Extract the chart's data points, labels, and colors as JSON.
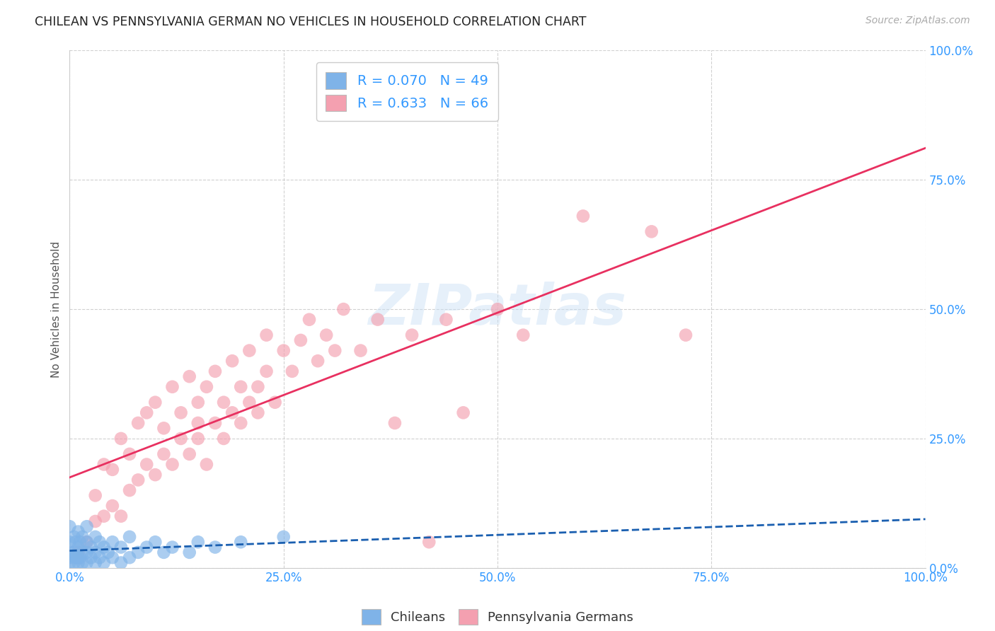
{
  "title": "CHILEAN VS PENNSYLVANIA GERMAN NO VEHICLES IN HOUSEHOLD CORRELATION CHART",
  "source": "Source: ZipAtlas.com",
  "ylabel": "No Vehicles in Household",
  "watermark": "ZIPatlas",
  "xlim": [
    0.0,
    1.0
  ],
  "ylim": [
    0.0,
    1.0
  ],
  "xtick_positions": [
    0.0,
    0.25,
    0.5,
    0.75,
    1.0
  ],
  "xtick_labels": [
    "0.0%",
    "25.0%",
    "50.0%",
    "75.0%",
    "100.0%"
  ],
  "ytick_positions": [
    0.0,
    0.25,
    0.5,
    0.75,
    1.0
  ],
  "ytick_labels": [
    "0.0%",
    "25.0%",
    "50.0%",
    "75.0%",
    "100.0%"
  ],
  "legend_labels": [
    "Chileans",
    "Pennsylvania Germans"
  ],
  "chilean_color": "#7fb3e8",
  "penn_color": "#f4a0b0",
  "chilean_line_color": "#1a5fb0",
  "penn_line_color": "#e83060",
  "chilean_R": 0.07,
  "chilean_N": 49,
  "penn_R": 0.633,
  "penn_N": 66,
  "title_color": "#222222",
  "source_color": "#aaaaaa",
  "grid_color": "#cccccc",
  "background_color": "#ffffff",
  "tick_color": "#3399ff",
  "ylabel_color": "#555555",
  "chilean_scatter_x": [
    0.0,
    0.0,
    0.0,
    0.0,
    0.0,
    0.005,
    0.005,
    0.005,
    0.007,
    0.007,
    0.01,
    0.01,
    0.01,
    0.01,
    0.012,
    0.012,
    0.015,
    0.015,
    0.015,
    0.02,
    0.02,
    0.02,
    0.02,
    0.025,
    0.025,
    0.03,
    0.03,
    0.03,
    0.035,
    0.035,
    0.04,
    0.04,
    0.045,
    0.05,
    0.05,
    0.06,
    0.06,
    0.07,
    0.07,
    0.08,
    0.09,
    0.1,
    0.11,
    0.12,
    0.14,
    0.15,
    0.17,
    0.2,
    0.25
  ],
  "chilean_scatter_y": [
    0.01,
    0.02,
    0.03,
    0.05,
    0.08,
    0.01,
    0.03,
    0.06,
    0.02,
    0.05,
    0.01,
    0.02,
    0.04,
    0.07,
    0.02,
    0.05,
    0.01,
    0.03,
    0.06,
    0.01,
    0.03,
    0.05,
    0.08,
    0.02,
    0.04,
    0.01,
    0.03,
    0.06,
    0.02,
    0.05,
    0.01,
    0.04,
    0.03,
    0.02,
    0.05,
    0.01,
    0.04,
    0.02,
    0.06,
    0.03,
    0.04,
    0.05,
    0.03,
    0.04,
    0.03,
    0.05,
    0.04,
    0.05,
    0.06
  ],
  "penn_scatter_x": [
    0.01,
    0.02,
    0.03,
    0.03,
    0.04,
    0.04,
    0.05,
    0.05,
    0.06,
    0.06,
    0.07,
    0.07,
    0.08,
    0.08,
    0.09,
    0.09,
    0.1,
    0.1,
    0.11,
    0.11,
    0.12,
    0.12,
    0.13,
    0.13,
    0.14,
    0.14,
    0.15,
    0.15,
    0.15,
    0.16,
    0.16,
    0.17,
    0.17,
    0.18,
    0.18,
    0.19,
    0.19,
    0.2,
    0.2,
    0.21,
    0.21,
    0.22,
    0.22,
    0.23,
    0.23,
    0.24,
    0.25,
    0.26,
    0.27,
    0.28,
    0.29,
    0.3,
    0.31,
    0.32,
    0.34,
    0.36,
    0.38,
    0.4,
    0.42,
    0.44,
    0.46,
    0.5,
    0.53,
    0.6,
    0.68,
    0.72
  ],
  "penn_scatter_y": [
    0.03,
    0.05,
    0.09,
    0.14,
    0.1,
    0.2,
    0.12,
    0.19,
    0.1,
    0.25,
    0.15,
    0.22,
    0.17,
    0.28,
    0.2,
    0.3,
    0.18,
    0.32,
    0.22,
    0.27,
    0.2,
    0.35,
    0.25,
    0.3,
    0.22,
    0.37,
    0.25,
    0.32,
    0.28,
    0.2,
    0.35,
    0.28,
    0.38,
    0.25,
    0.32,
    0.3,
    0.4,
    0.28,
    0.35,
    0.32,
    0.42,
    0.35,
    0.3,
    0.38,
    0.45,
    0.32,
    0.42,
    0.38,
    0.44,
    0.48,
    0.4,
    0.45,
    0.42,
    0.5,
    0.42,
    0.48,
    0.28,
    0.45,
    0.05,
    0.48,
    0.3,
    0.5,
    0.45,
    0.68,
    0.65,
    0.45
  ]
}
